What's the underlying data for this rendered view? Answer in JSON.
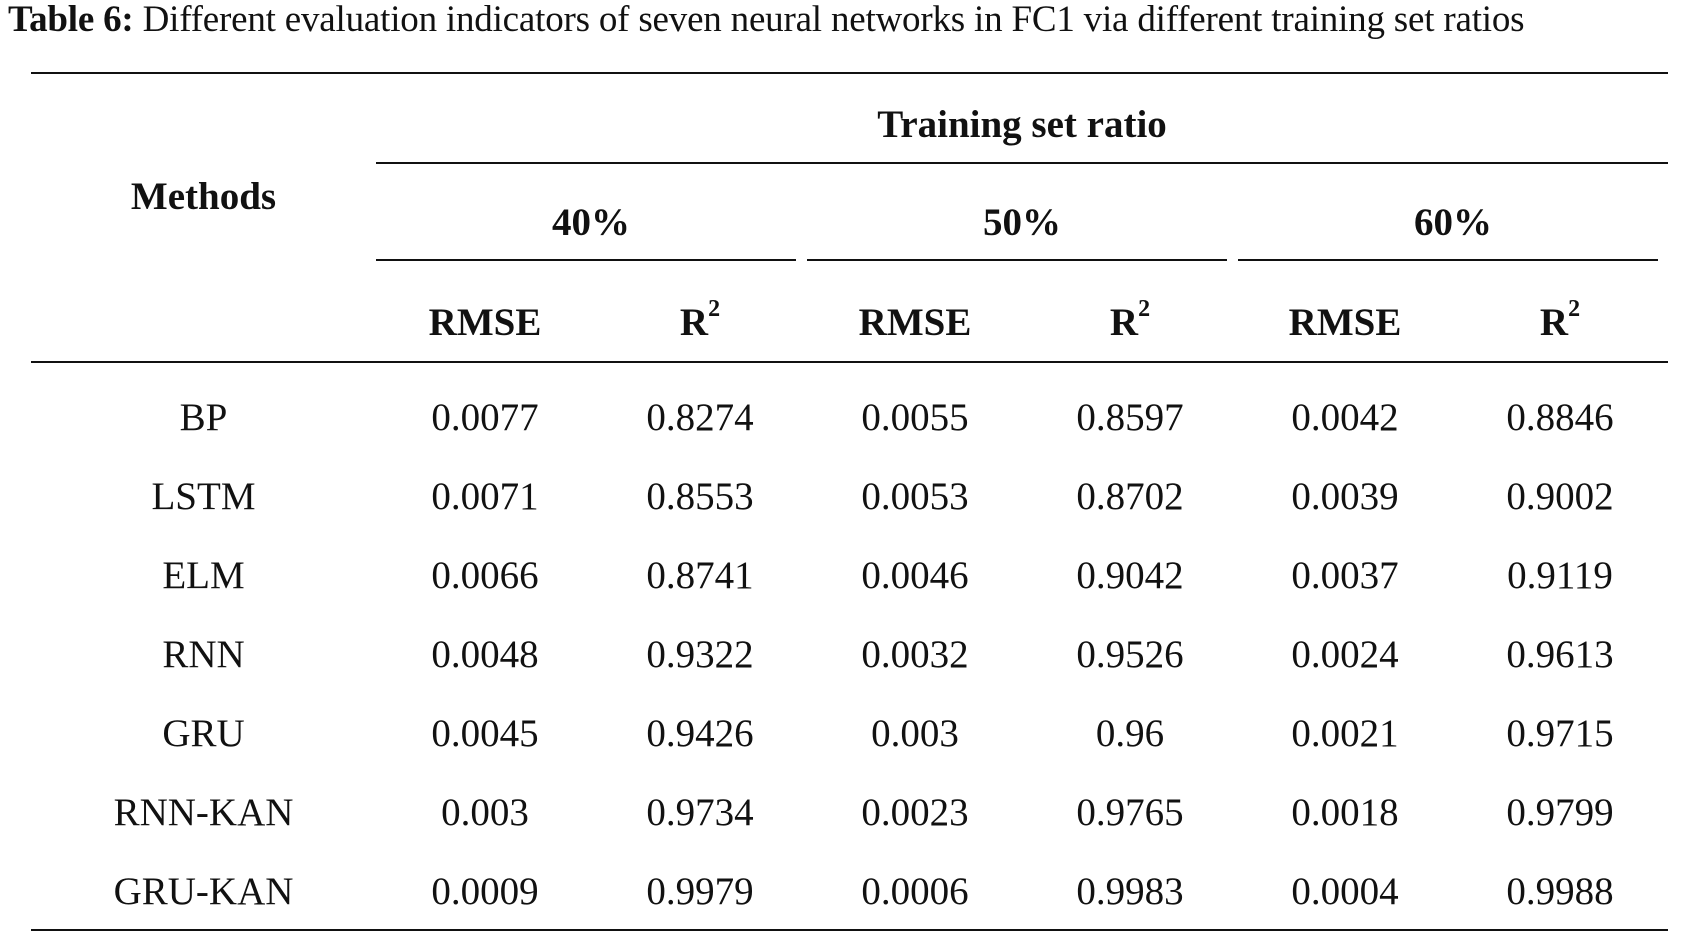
{
  "caption": {
    "label": "Table 6:",
    "text": " Different evaluation indicators of seven neural networks in FC1 via different training set ratios"
  },
  "header": {
    "methods": "Methods",
    "group_title": "Training set ratio",
    "ratios": [
      "40%",
      "50%",
      "60%"
    ],
    "metric_rmse": "RMSE",
    "metric_r": "R",
    "metric_r_sup": "2"
  },
  "rows": [
    {
      "method": "BP",
      "values": [
        "0.0077",
        "0.8274",
        "0.0055",
        "0.8597",
        "0.0042",
        "0.8846"
      ]
    },
    {
      "method": "LSTM",
      "values": [
        "0.0071",
        "0.8553",
        "0.0053",
        "0.8702",
        "0.0039",
        "0.9002"
      ]
    },
    {
      "method": "ELM",
      "values": [
        "0.0066",
        "0.8741",
        "0.0046",
        "0.9042",
        "0.0037",
        "0.9119"
      ]
    },
    {
      "method": "RNN",
      "values": [
        "0.0048",
        "0.9322",
        "0.0032",
        "0.9526",
        "0.0024",
        "0.9613"
      ]
    },
    {
      "method": "GRU",
      "values": [
        "0.0045",
        "0.9426",
        "0.003",
        "0.96",
        "0.0021",
        "0.9715"
      ]
    },
    {
      "method": "RNN-KAN",
      "values": [
        "0.003",
        "0.9734",
        "0.0023",
        "0.9765",
        "0.0018",
        "0.9799"
      ]
    },
    {
      "method": "GRU-KAN",
      "values": [
        "0.0009",
        "0.9979",
        "0.0006",
        "0.9983",
        "0.0004",
        "0.9988"
      ]
    }
  ]
}
